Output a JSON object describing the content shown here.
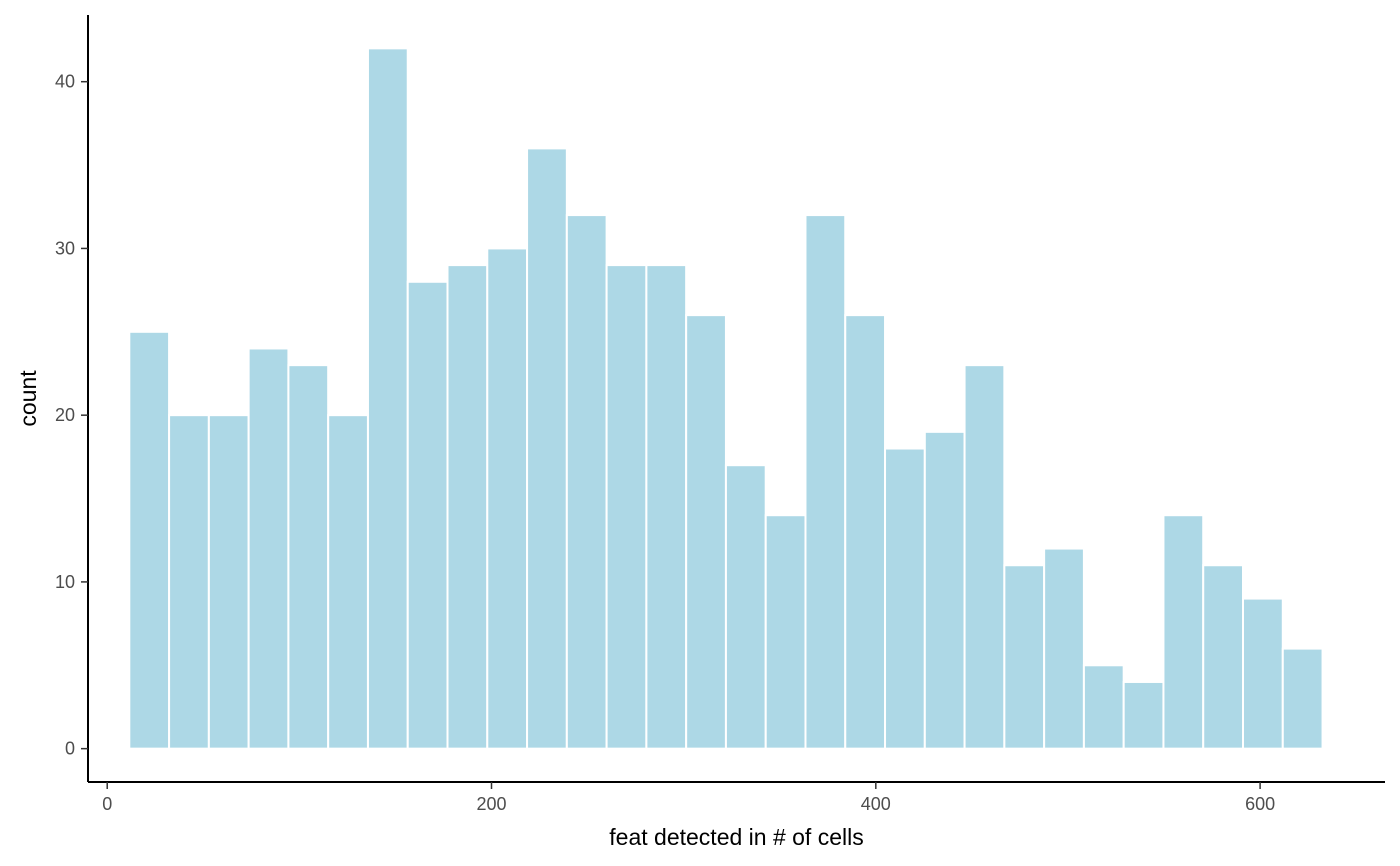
{
  "chart_data": {
    "type": "bar",
    "xlabel": "feat detected in # of cells",
    "ylabel": "count",
    "xlim": [
      -10,
      665
    ],
    "ylim": [
      -2,
      44
    ],
    "x_ticks": [
      0,
      200,
      400,
      600
    ],
    "y_ticks": [
      0,
      10,
      20,
      30,
      40
    ],
    "grid": false,
    "bar_color": "#ADD8E6",
    "bar_edge_color": "#ffffff",
    "bins": [
      {
        "x0": 11.5,
        "x1": 32.2,
        "count": 25
      },
      {
        "x0": 32.2,
        "x1": 52.9,
        "count": 20
      },
      {
        "x0": 52.9,
        "x1": 73.6,
        "count": 20
      },
      {
        "x0": 73.6,
        "x1": 94.3,
        "count": 24
      },
      {
        "x0": 94.3,
        "x1": 115.0,
        "count": 23
      },
      {
        "x0": 115.0,
        "x1": 135.7,
        "count": 20
      },
      {
        "x0": 135.7,
        "x1": 156.4,
        "count": 42
      },
      {
        "x0": 156.4,
        "x1": 177.1,
        "count": 28
      },
      {
        "x0": 177.1,
        "x1": 197.8,
        "count": 29
      },
      {
        "x0": 197.8,
        "x1": 218.5,
        "count": 30
      },
      {
        "x0": 218.5,
        "x1": 239.2,
        "count": 36
      },
      {
        "x0": 239.2,
        "x1": 259.9,
        "count": 32
      },
      {
        "x0": 259.9,
        "x1": 280.6,
        "count": 29
      },
      {
        "x0": 280.6,
        "x1": 301.3,
        "count": 29
      },
      {
        "x0": 301.3,
        "x1": 322.0,
        "count": 26
      },
      {
        "x0": 322.0,
        "x1": 342.7,
        "count": 17
      },
      {
        "x0": 342.7,
        "x1": 363.4,
        "count": 14
      },
      {
        "x0": 363.4,
        "x1": 384.1,
        "count": 32
      },
      {
        "x0": 384.1,
        "x1": 404.8,
        "count": 26
      },
      {
        "x0": 404.8,
        "x1": 425.5,
        "count": 18
      },
      {
        "x0": 425.5,
        "x1": 446.2,
        "count": 19
      },
      {
        "x0": 446.2,
        "x1": 466.9,
        "count": 23
      },
      {
        "x0": 466.9,
        "x1": 487.6,
        "count": 11
      },
      {
        "x0": 487.6,
        "x1": 508.3,
        "count": 12
      },
      {
        "x0": 508.3,
        "x1": 529.0,
        "count": 5
      },
      {
        "x0": 529.0,
        "x1": 549.7,
        "count": 4
      },
      {
        "x0": 549.7,
        "x1": 570.4,
        "count": 14
      },
      {
        "x0": 570.4,
        "x1": 591.1,
        "count": 11
      },
      {
        "x0": 591.1,
        "x1": 611.8,
        "count": 9
      },
      {
        "x0": 611.8,
        "x1": 632.5,
        "count": 6
      }
    ]
  }
}
